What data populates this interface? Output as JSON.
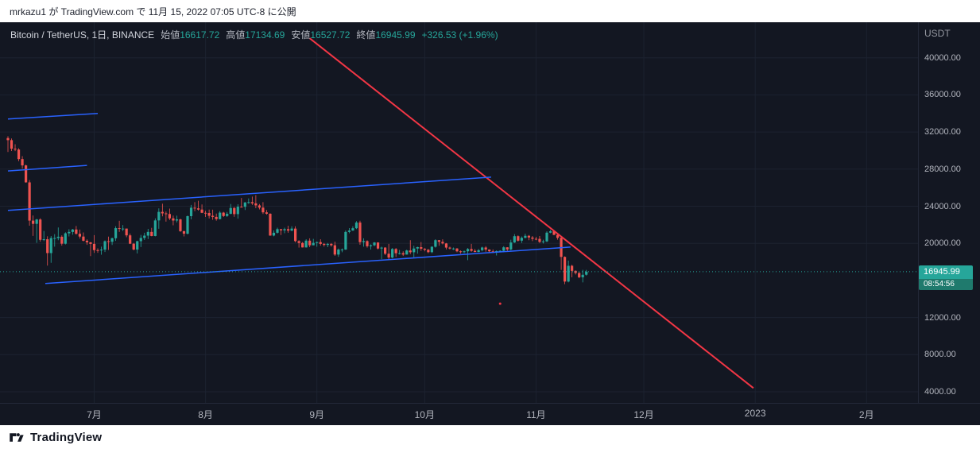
{
  "publish_bar": {
    "text": "mrkazu1 が TradingView.com で 11月 15, 2022 07:05 UTC-8 に公開"
  },
  "legend": {
    "symbol": "Bitcoin / TetherUS, 1日, BINANCE",
    "open_label": "始値",
    "open": "16617.72",
    "high_label": "高値",
    "high": "17134.69",
    "low_label": "安値",
    "low": "16527.72",
    "close_label": "終値",
    "close": "16945.99",
    "change": "+326.53 (+1.96%)"
  },
  "price_axis": {
    "currency": "USDT",
    "ticks": [
      {
        "label": "40000.00",
        "value": 40000
      },
      {
        "label": "36000.00",
        "value": 36000
      },
      {
        "label": "32000.00",
        "value": 32000
      },
      {
        "label": "28000.00",
        "value": 28000
      },
      {
        "label": "24000.00",
        "value": 24000
      },
      {
        "label": "20000.00",
        "value": 20000
      },
      {
        "label": "12000.00",
        "value": 12000
      },
      {
        "label": "8000.00",
        "value": 8000
      },
      {
        "label": "4000.00",
        "value": 4000
      }
    ],
    "last_price": "16945.99",
    "countdown": "08:54:56"
  },
  "time_axis": {
    "labels": [
      {
        "label": "7月",
        "day": 24
      },
      {
        "label": "8月",
        "day": 55
      },
      {
        "label": "9月",
        "day": 86
      },
      {
        "label": "10月",
        "day": 116
      },
      {
        "label": "11月",
        "day": 147
      },
      {
        "label": "12月",
        "day": 177
      },
      {
        "label": "2023",
        "day": 208
      },
      {
        "label": "2月",
        "day": 239
      }
    ]
  },
  "footer": {
    "brand": "TradingView"
  },
  "colors": {
    "background": "#131722",
    "bull": "#26a69a",
    "bear": "#ef5350",
    "grid": "#1c2230",
    "separator": "#232838",
    "axis_text": "#b2b5be",
    "trendline_red": "#f23645",
    "trendline_blue": "#2962ff",
    "price_badge_bg": "#26a69a",
    "countdown_bg": "#1f7a6d"
  },
  "chart_data": {
    "type": "candlestick",
    "title": "Bitcoin / TetherUS",
    "interval_label": "1日",
    "exchange": "BINANCE",
    "start_date": "2022-06-07",
    "y_range_visible": [
      3000,
      42800
    ],
    "ohlc_current": {
      "open": 16617.72,
      "high": 17134.69,
      "low": 16527.72,
      "close": 16945.99,
      "change": 326.53,
      "change_pct": 1.96
    },
    "candles": [
      [
        31350,
        31550,
        29850,
        31120
      ],
      [
        31120,
        31300,
        29950,
        30200
      ],
      [
        30200,
        30680,
        29940,
        30110
      ],
      [
        30110,
        30250,
        28850,
        29080
      ],
      [
        29080,
        29400,
        28060,
        28400
      ],
      [
        28400,
        28480,
        26550,
        26570
      ],
      [
        26570,
        26820,
        21900,
        22450
      ],
      [
        22450,
        23000,
        20800,
        22100
      ],
      [
        22100,
        22640,
        20050,
        22570
      ],
      [
        22570,
        22700,
        20180,
        20380
      ],
      [
        20380,
        21330,
        20240,
        20440
      ],
      [
        20440,
        20760,
        17600,
        18950
      ],
      [
        18950,
        20790,
        17900,
        20570
      ],
      [
        20570,
        20990,
        19640,
        20570
      ],
      [
        20570,
        21710,
        20340,
        20710
      ],
      [
        20710,
        20860,
        19750,
        19960
      ],
      [
        19960,
        21190,
        19880,
        21080
      ],
      [
        21080,
        21520,
        20740,
        21230
      ],
      [
        21230,
        21550,
        20930,
        21490
      ],
      [
        21490,
        21870,
        20940,
        21030
      ],
      [
        21030,
        21480,
        20510,
        20730
      ],
      [
        20730,
        21170,
        20210,
        20280
      ],
      [
        20280,
        20420,
        19840,
        20110
      ],
      [
        20110,
        20140,
        18630,
        19940
      ],
      [
        19940,
        20880,
        18970,
        19270
      ],
      [
        19270,
        19460,
        18980,
        19240
      ],
      [
        19240,
        19640,
        18780,
        19320
      ],
      [
        19320,
        20320,
        19060,
        20230
      ],
      [
        20230,
        20720,
        19290,
        20170
      ],
      [
        20170,
        20620,
        19820,
        20550
      ],
      [
        20550,
        21840,
        20260,
        21640
      ],
      [
        21640,
        22430,
        21230,
        21590
      ],
      [
        21590,
        21970,
        21330,
        21590
      ],
      [
        21590,
        21600,
        20660,
        20860
      ],
      [
        20860,
        21060,
        19920,
        19960
      ],
      [
        19960,
        20040,
        19240,
        19330
      ],
      [
        19330,
        20280,
        18910,
        20230
      ],
      [
        20230,
        20910,
        19600,
        20580
      ],
      [
        20580,
        21140,
        20360,
        20830
      ],
      [
        20830,
        21560,
        20460,
        21230
      ],
      [
        21230,
        21670,
        20760,
        20790
      ],
      [
        20790,
        22690,
        20750,
        22470
      ],
      [
        22470,
        23770,
        21570,
        23390
      ],
      [
        23390,
        24270,
        22910,
        23230
      ],
      [
        23230,
        23430,
        22340,
        23160
      ],
      [
        23160,
        23740,
        22520,
        22690
      ],
      [
        22690,
        22990,
        21940,
        22460
      ],
      [
        22460,
        22980,
        22260,
        22580
      ],
      [
        22580,
        22650,
        21240,
        21310
      ],
      [
        21310,
        21360,
        20740,
        21040
      ],
      [
        21040,
        22990,
        20960,
        22930
      ],
      [
        22930,
        24140,
        22590,
        23840
      ],
      [
        23840,
        24440,
        23460,
        23770
      ],
      [
        23770,
        24590,
        23530,
        23640
      ],
      [
        23640,
        24190,
        23260,
        23290
      ],
      [
        23290,
        23510,
        22840,
        23270
      ],
      [
        23270,
        23640,
        22680,
        22970
      ],
      [
        22970,
        23630,
        22540,
        22850
      ],
      [
        22850,
        23210,
        22440,
        22610
      ],
      [
        22610,
        23470,
        22580,
        23310
      ],
      [
        23310,
        23390,
        22840,
        22950
      ],
      [
        22950,
        23380,
        22850,
        23180
      ],
      [
        23180,
        24240,
        23140,
        23810
      ],
      [
        23810,
        23920,
        22860,
        23150
      ],
      [
        23150,
        24210,
        22660,
        23950
      ],
      [
        23950,
        24890,
        23860,
        23940
      ],
      [
        23940,
        24440,
        23590,
        24410
      ],
      [
        24410,
        24840,
        24260,
        24440
      ],
      [
        24440,
        25040,
        24140,
        24310
      ],
      [
        24310,
        25200,
        23790,
        24090
      ],
      [
        24090,
        24240,
        23660,
        23850
      ],
      [
        23850,
        24440,
        23160,
        23340
      ],
      [
        23340,
        23590,
        23090,
        23190
      ],
      [
        23190,
        23240,
        20810,
        20840
      ],
      [
        20840,
        21390,
        20760,
        21140
      ],
      [
        21140,
        21690,
        21060,
        21530
      ],
      [
        21530,
        21540,
        20890,
        21400
      ],
      [
        21400,
        21690,
        21090,
        21530
      ],
      [
        21530,
        21890,
        21140,
        21370
      ],
      [
        21370,
        21840,
        21310,
        21590
      ],
      [
        21590,
        21840,
        20110,
        20240
      ],
      [
        20240,
        20340,
        19540,
        20040
      ],
      [
        20040,
        20140,
        19550,
        19560
      ],
      [
        19560,
        20440,
        19540,
        20290
      ],
      [
        20290,
        20540,
        19590,
        19790
      ],
      [
        19790,
        20480,
        19790,
        20050
      ],
      [
        20050,
        20190,
        19640,
        20130
      ],
      [
        20130,
        20440,
        19750,
        19940
      ],
      [
        19940,
        20040,
        19650,
        19830
      ],
      [
        19830,
        20040,
        19590,
        19940
      ],
      [
        19940,
        20030,
        19640,
        19790
      ],
      [
        19790,
        20180,
        18650,
        18790
      ],
      [
        18790,
        19440,
        18540,
        19330
      ],
      [
        19330,
        19450,
        19040,
        19330
      ],
      [
        19330,
        21390,
        19290,
        21230
      ],
      [
        21230,
        21640,
        21090,
        21380
      ],
      [
        21380,
        21840,
        21340,
        21630
      ],
      [
        21630,
        22390,
        21540,
        22240
      ],
      [
        22240,
        22440,
        19850,
        20130
      ],
      [
        20130,
        20540,
        19640,
        20240
      ],
      [
        20240,
        20330,
        19540,
        19690
      ],
      [
        19690,
        19890,
        19330,
        19790
      ],
      [
        19790,
        20140,
        19690,
        20090
      ],
      [
        20090,
        20110,
        19340,
        19440
      ],
      [
        19440,
        19640,
        18290,
        19540
      ],
      [
        19540,
        19590,
        18740,
        18880
      ],
      [
        18880,
        19940,
        18190,
        18470
      ],
      [
        18470,
        19490,
        18390,
        19390
      ],
      [
        19390,
        19490,
        18540,
        18930
      ],
      [
        18930,
        19290,
        18790,
        18940
      ],
      [
        18940,
        19140,
        18640,
        18790
      ],
      [
        18790,
        19310,
        18790,
        19230
      ],
      [
        19230,
        20340,
        18840,
        19040
      ],
      [
        19040,
        19740,
        18490,
        19440
      ],
      [
        19440,
        19640,
        18890,
        19590
      ],
      [
        19590,
        20140,
        19190,
        19420
      ],
      [
        19420,
        19480,
        19140,
        19310
      ],
      [
        19310,
        19390,
        18940,
        19050
      ],
      [
        19050,
        19690,
        18940,
        19630
      ],
      [
        19630,
        20440,
        19540,
        20340
      ],
      [
        20340,
        20360,
        19740,
        20160
      ],
      [
        20160,
        20440,
        19890,
        19990
      ],
      [
        19990,
        20040,
        19340,
        19540
      ],
      [
        19540,
        19640,
        19340,
        19440
      ],
      [
        19440,
        19550,
        19290,
        19440
      ],
      [
        19440,
        19490,
        19040,
        19140
      ],
      [
        19140,
        19240,
        18890,
        19050
      ],
      [
        19050,
        19230,
        18940,
        19140
      ],
      [
        19140,
        19490,
        18190,
        19390
      ],
      [
        19390,
        19940,
        19090,
        19190
      ],
      [
        19190,
        19390,
        19040,
        19070
      ],
      [
        19070,
        19390,
        19040,
        19260
      ],
      [
        19260,
        19640,
        19140,
        19550
      ],
      [
        19550,
        19690,
        19090,
        19330
      ],
      [
        19330,
        19340,
        19040,
        19140
      ],
      [
        19140,
        19340,
        18940,
        19040
      ],
      [
        19040,
        19240,
        18690,
        19160
      ],
      [
        19160,
        19240,
        19040,
        19200
      ],
      [
        19200,
        19690,
        19040,
        19570
      ],
      [
        19570,
        19590,
        19140,
        19340
      ],
      [
        19340,
        20390,
        19240,
        20090
      ],
      [
        20090,
        20990,
        20040,
        20770
      ],
      [
        20770,
        20860,
        20190,
        20290
      ],
      [
        20290,
        20740,
        20040,
        20590
      ],
      [
        20590,
        21040,
        20540,
        20810
      ],
      [
        20810,
        20890,
        20340,
        20630
      ],
      [
        20630,
        20790,
        20240,
        20490
      ],
      [
        20490,
        20690,
        20340,
        20480
      ],
      [
        20480,
        20790,
        20040,
        20150
      ],
      [
        20150,
        20390,
        19990,
        20210
      ],
      [
        20210,
        21290,
        20140,
        21150
      ],
      [
        21150,
        21440,
        21090,
        21300
      ],
      [
        21300,
        21340,
        20890,
        20910
      ],
      [
        20910,
        21040,
        20390,
        20590
      ],
      [
        20590,
        20640,
        17140,
        18540
      ],
      [
        18540,
        18590,
        15590,
        15880
      ],
      [
        15880,
        18140,
        15790,
        17580
      ],
      [
        17580,
        17690,
        16340,
        17030
      ],
      [
        17030,
        17090,
        16640,
        16800
      ],
      [
        16800,
        16940,
        16240,
        16340
      ],
      [
        16340,
        17140,
        15790,
        16610
      ],
      [
        16617.72,
        17134.69,
        16527.72,
        16945.99
      ]
    ],
    "trendlines": [
      {
        "name": "descending-resistance-line",
        "color": "#f23645",
        "width": 2,
        "points": [
          {
            "day": 84,
            "price": 42100
          },
          {
            "day": 207.5,
            "price": 4400
          }
        ]
      },
      {
        "name": "channel-line-upper-1",
        "color": "#2962ff",
        "width": 1.5,
        "points": [
          {
            "day": 0,
            "price": 33400
          },
          {
            "day": 25,
            "price": 34000
          }
        ]
      },
      {
        "name": "channel-line-upper-2",
        "color": "#2962ff",
        "width": 1.5,
        "points": [
          {
            "day": 0,
            "price": 27800
          },
          {
            "day": 22,
            "price": 28400
          }
        ]
      },
      {
        "name": "channel-line-middle",
        "color": "#2962ff",
        "width": 1.5,
        "points": [
          {
            "day": 0,
            "price": 23550
          },
          {
            "day": 134.5,
            "price": 27140
          }
        ]
      },
      {
        "name": "channel-line-lower",
        "color": "#2962ff",
        "width": 1.5,
        "points": [
          {
            "day": 10.4,
            "price": 15670
          },
          {
            "day": 156.6,
            "price": 19600
          }
        ]
      }
    ],
    "markers": [
      {
        "name": "red-dot-marker",
        "day": 137,
        "price": 13500,
        "color": "#f23645",
        "r": 1.5
      }
    ],
    "price_line": {
      "price": 16945.99,
      "color": "#26a69a",
      "style": "dotted"
    }
  }
}
